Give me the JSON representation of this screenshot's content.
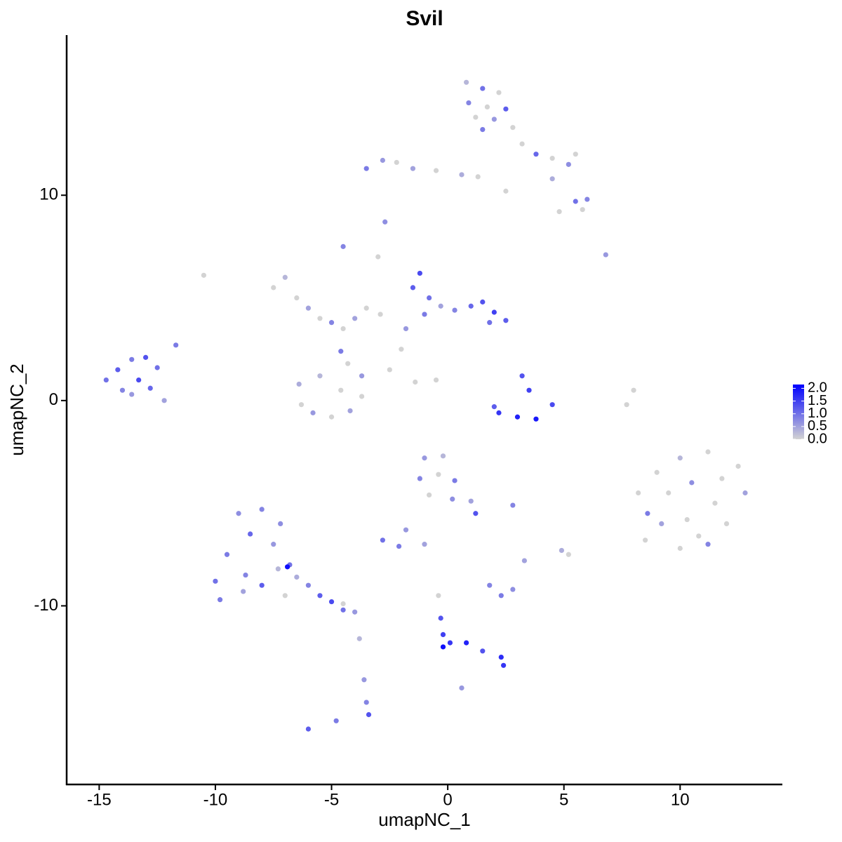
{
  "chart_data": {
    "type": "scatter",
    "title": "Svil",
    "x_label": "umapNC_1",
    "y_label": "umapNC_2",
    "xlim": [
      -16.4,
      14.4
    ],
    "ylim": [
      -18.7,
      17.8
    ],
    "xticks": [
      -15,
      -10,
      -5,
      0,
      5,
      10
    ],
    "yticks": [
      -10,
      0,
      10
    ],
    "low_color": "#d3d3d3",
    "high_color": "#0000ff",
    "color_lim": [
      0,
      2.15
    ],
    "color_ticks": [
      {
        "value": 0,
        "label": "0.0"
      },
      {
        "value": 0.5,
        "label": "0.5"
      },
      {
        "value": 1,
        "label": "1.0"
      },
      {
        "value": 1.5,
        "label": "1.5"
      },
      {
        "value": 2,
        "label": "2.0"
      }
    ],
    "x": [
      0.8,
      1.5,
      2.2,
      0.9,
      1.7,
      2.5,
      1.2,
      2.0,
      2.8,
      1.5,
      3.2,
      3.8,
      4.5,
      5.2,
      5.5,
      4.5,
      5.5,
      4.8,
      6.0,
      5.8,
      -3.5,
      -2.8,
      -2.2,
      -1.5,
      -0.5,
      0.6,
      1.3,
      2.5,
      -2.7,
      -4.5,
      -10.5,
      6.8,
      -14.7,
      -14.2,
      -13.6,
      -13.0,
      -12.5,
      -13.3,
      -14.0,
      -12.8,
      -12.2,
      -11.7,
      -13.6,
      -7.5,
      -7.0,
      -6.5,
      -6.0,
      -5.5,
      -5.0,
      -4.5,
      -4.0,
      -3.5,
      -2.9,
      -6.4,
      -6.3,
      -5.8,
      -5.0,
      -4.2,
      -3.7,
      -3.7,
      -4.3,
      -5.5,
      -4.6,
      -4.6,
      -1.2,
      -1.5,
      -0.8,
      -1.0,
      -0.3,
      0.3,
      1.0,
      1.5,
      2.0,
      2.5,
      1.8,
      -1.8,
      -2.0,
      -3.0,
      -2.5,
      -1.4,
      -0.5,
      3.2,
      3.5,
      2.2,
      3.0,
      3.8,
      4.5,
      2.0,
      8.0,
      7.7,
      8.2,
      9.0,
      10.0,
      11.2,
      12.5,
      12.8,
      12.0,
      11.2,
      10.0,
      8.5,
      8.6,
      9.5,
      10.5,
      11.5,
      10.3,
      9.2,
      10.8,
      11.8,
      2.8,
      4.9,
      5.2,
      3.3,
      -1.0,
      -0.2,
      -1.2,
      -0.4,
      0.3,
      -0.8,
      0.2,
      1.0,
      1.2,
      -2.8,
      -2.1,
      -1.8,
      -1.0,
      -10.0,
      -9.5,
      -9.0,
      -8.5,
      -8.7,
      -8.0,
      -9.8,
      -8.8,
      -7.5,
      -7.3,
      -8.0,
      -7.0,
      -6.8,
      -6.5,
      -7.2,
      -6.9,
      -6.0,
      -5.5,
      -5.0,
      -4.5,
      -4.0,
      -4.5,
      -3.8,
      -3.6,
      -3.5,
      -3.4,
      -6.0,
      -4.8,
      -0.4,
      -0.3,
      -0.2,
      -0.2,
      0.1,
      0.8,
      1.5,
      2.3,
      2.4,
      1.8,
      2.3,
      2.8,
      0.6
    ],
    "y": [
      15.5,
      15.2,
      15.0,
      14.5,
      14.3,
      14.2,
      13.8,
      13.7,
      13.3,
      13.2,
      12.5,
      12.0,
      11.8,
      11.5,
      12.0,
      10.8,
      9.7,
      9.2,
      9.8,
      9.3,
      11.3,
      11.7,
      11.6,
      11.3,
      11.2,
      11.0,
      10.9,
      10.2,
      8.7,
      7.5,
      6.1,
      7.1,
      1.0,
      1.5,
      2.0,
      2.1,
      1.6,
      1.0,
      0.5,
      0.6,
      0.0,
      2.7,
      0.3,
      5.5,
      6.0,
      5.0,
      4.5,
      4.0,
      3.8,
      3.5,
      4.0,
      4.5,
      4.2,
      0.8,
      -0.2,
      -0.6,
      -0.8,
      -0.5,
      0.2,
      1.2,
      1.8,
      1.2,
      2.4,
      0.5,
      6.2,
      5.5,
      5.0,
      4.2,
      4.6,
      4.4,
      4.6,
      4.8,
      4.3,
      3.9,
      3.8,
      3.5,
      2.5,
      7.0,
      1.5,
      0.9,
      1.0,
      1.2,
      0.5,
      -0.6,
      -0.8,
      -0.9,
      -0.2,
      -0.3,
      0.5,
      -0.2,
      -4.5,
      -3.5,
      -2.8,
      -2.5,
      -3.2,
      -4.5,
      -6.0,
      -7.0,
      -7.2,
      -6.8,
      -5.5,
      -4.5,
      -4.0,
      -5.0,
      -5.8,
      -6.0,
      -6.6,
      -3.8,
      -5.1,
      -7.3,
      -7.5,
      -7.8,
      -2.8,
      -2.7,
      -3.8,
      -3.6,
      -3.9,
      -4.6,
      -4.8,
      -4.9,
      -5.5,
      -6.8,
      -7.1,
      -6.3,
      -7.0,
      -8.8,
      -7.5,
      -5.5,
      -6.5,
      -8.5,
      -9.0,
      -9.7,
      -9.3,
      -7.0,
      -8.2,
      -5.3,
      -9.5,
      -8.0,
      -8.6,
      -6.0,
      -8.1,
      -9.0,
      -9.5,
      -9.8,
      -10.2,
      -10.3,
      -9.9,
      -11.6,
      -13.6,
      -14.7,
      -15.3,
      -16.0,
      -15.6,
      -9.5,
      -10.6,
      -11.4,
      -12.0,
      -11.8,
      -11.8,
      -12.2,
      -12.5,
      -12.9,
      -9.0,
      -9.5,
      -9.2,
      -14.0
    ],
    "expression": [
      0.3,
      1.0,
      0.0,
      0.8,
      0,
      1.2,
      0,
      0.6,
      0,
      0.9,
      0,
      1.1,
      0,
      0.7,
      0,
      0.4,
      1.0,
      0,
      0.8,
      0,
      0.9,
      0.6,
      0,
      0.5,
      0,
      0.4,
      0,
      0,
      0.7,
      0.8,
      0,
      0.6,
      1.0,
      1.2,
      0.9,
      1.3,
      1.0,
      1.4,
      0.8,
      1.1,
      0.5,
      0.9,
      0.6,
      0,
      0.3,
      0,
      0.5,
      0,
      0.8,
      0,
      0.5,
      0,
      0,
      0.4,
      0,
      0.6,
      0,
      0.5,
      0,
      0.6,
      0,
      0.3,
      0.9,
      0,
      1.4,
      1.2,
      1.0,
      0.9,
      0.5,
      0.8,
      1.1,
      1.3,
      1.5,
      1.2,
      1.0,
      0.6,
      0,
      0,
      0,
      0,
      0,
      1.3,
      1.5,
      1.6,
      1.8,
      1.9,
      1.4,
      1.2,
      0,
      0,
      0,
      0,
      0.3,
      0,
      0,
      0.5,
      0,
      0.8,
      0,
      0,
      0.9,
      0,
      0.7,
      0,
      0,
      0.5,
      0,
      0,
      0.8,
      0.4,
      0,
      0.5,
      0.6,
      0.3,
      0.8,
      0,
      0.9,
      0,
      0.7,
      0.5,
      1.3,
      1.0,
      0.9,
      0.6,
      0.5,
      1.0,
      0.9,
      0.7,
      1.1,
      0.8,
      1.2,
      0.9,
      0.5,
      0.6,
      0.3,
      0.8,
      0,
      1.0,
      0.4,
      0.7,
      2.0,
      0.8,
      1.2,
      1.4,
      1.0,
      0.6,
      0,
      0.3,
      0.6,
      0.8,
      1.3,
      1.2,
      0.9,
      0,
      1.3,
      1.5,
      2.0,
      1.6,
      1.8,
      1.3,
      1.7,
      1.6,
      0.8,
      0.9,
      0.7,
      0.6
    ]
  }
}
